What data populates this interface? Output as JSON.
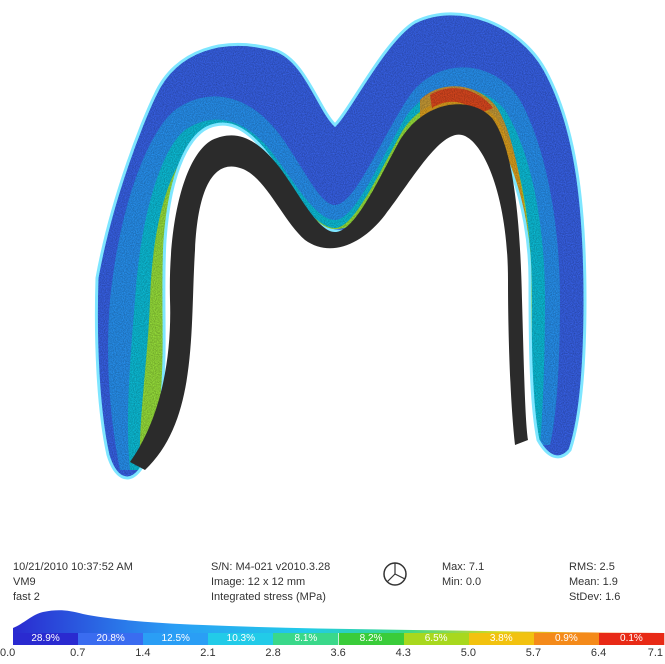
{
  "info": {
    "datetime": "10/21/2010 10:37:52 AM",
    "material": "VM9",
    "mode": "fast 2",
    "serial": "S/N:   M4-021 v2010.3.28",
    "image_size": "Image: 12 x 12 mm",
    "quantity": "Integrated stress (MPa)",
    "max": "Max: 7.1",
    "min": "Min:  0.0",
    "rms": "RMS:  2.5",
    "mean": "Mean: 1.9",
    "stdev": "StDev: 1.6"
  },
  "icons": {
    "pie": "pie-chart-icon"
  },
  "scale": {
    "percentages": [
      "28.9%",
      "20.8%",
      "12.5%",
      "10.3%",
      "8.1%",
      "8.2%",
      "6.5%",
      "3.8%",
      "0.9%",
      "0.1%"
    ],
    "colors": [
      "#2a2ad0",
      "#3a6cf0",
      "#2a9ef5",
      "#22cbe8",
      "#3ad88a",
      "#3acc3a",
      "#a8d81e",
      "#f2c20f",
      "#f48a1a",
      "#e82a16"
    ],
    "ticks": [
      "0.0",
      "0.7",
      "1.4",
      "2.1",
      "2.8",
      "3.6",
      "4.3",
      "5.0",
      "5.7",
      "6.4",
      "7.1"
    ]
  },
  "colors": {
    "core": "#2b2b2b",
    "outline": "#7ee6ff"
  }
}
